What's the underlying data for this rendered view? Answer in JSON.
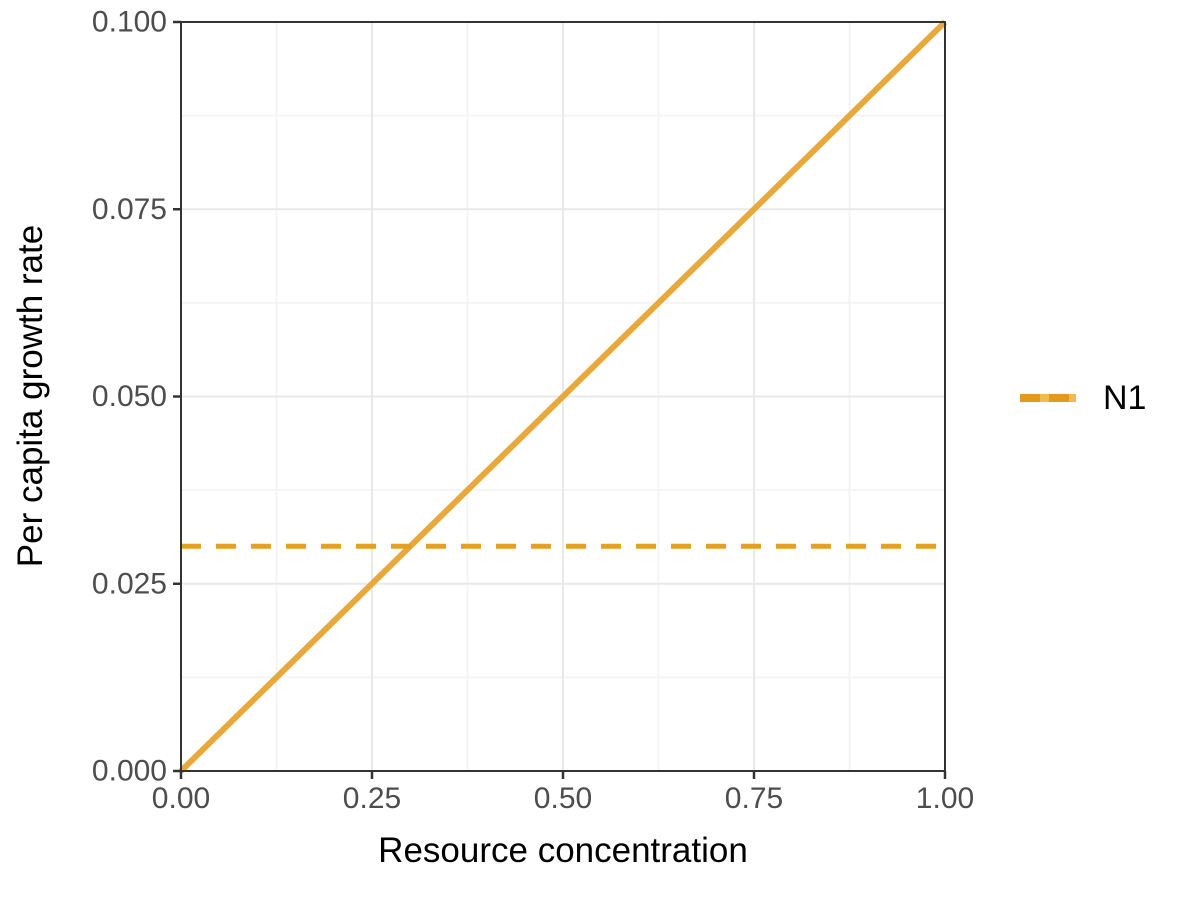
{
  "figure": {
    "background": "#FFFFFF"
  },
  "chart_data": {
    "type": "line",
    "title": "",
    "xlabel": "Resource concentration",
    "ylabel": "Per capita growth rate",
    "xlim": [
      0,
      1
    ],
    "ylim": [
      0,
      0.1
    ],
    "x_ticks": {
      "values": [
        0,
        0.25,
        0.5,
        0.75,
        1.0
      ],
      "labels": [
        "0.00",
        "0.25",
        "0.50",
        "0.75",
        "1.00"
      ]
    },
    "y_ticks": {
      "values": [
        0,
        0.025,
        0.05,
        0.075,
        0.1
      ],
      "labels": [
        "0.000",
        "0.025",
        "0.050",
        "0.075",
        "0.100"
      ]
    },
    "grid": {
      "show_major": true,
      "show_minor": true,
      "major_color": "#E9E9E9",
      "minor_color": "#F4F4F4"
    },
    "series": [
      {
        "name": "N1",
        "linetype": "solid",
        "color": "#E8A93C",
        "width": 6,
        "points": [
          [
            0,
            0
          ],
          [
            1,
            0.1
          ]
        ]
      },
      {
        "name": "N1",
        "linetype": "dashed",
        "color": "#E4A023",
        "width": 5,
        "dash": [
          20,
          15
        ],
        "points": [
          [
            0,
            0.03
          ],
          [
            1,
            0.03
          ]
        ]
      }
    ],
    "legend": {
      "position": "right",
      "entries": [
        {
          "label": "N1",
          "color": "#E8A93C",
          "key_base_color": "#F0BA50",
          "key_dash_color": "#E19A1C"
        }
      ]
    },
    "colors": {
      "panel_border": "#333333",
      "tick_mark": "#333333",
      "tick_label": "#4D4D4D",
      "axis_title": "#000000",
      "legend_text": "#000000"
    }
  }
}
